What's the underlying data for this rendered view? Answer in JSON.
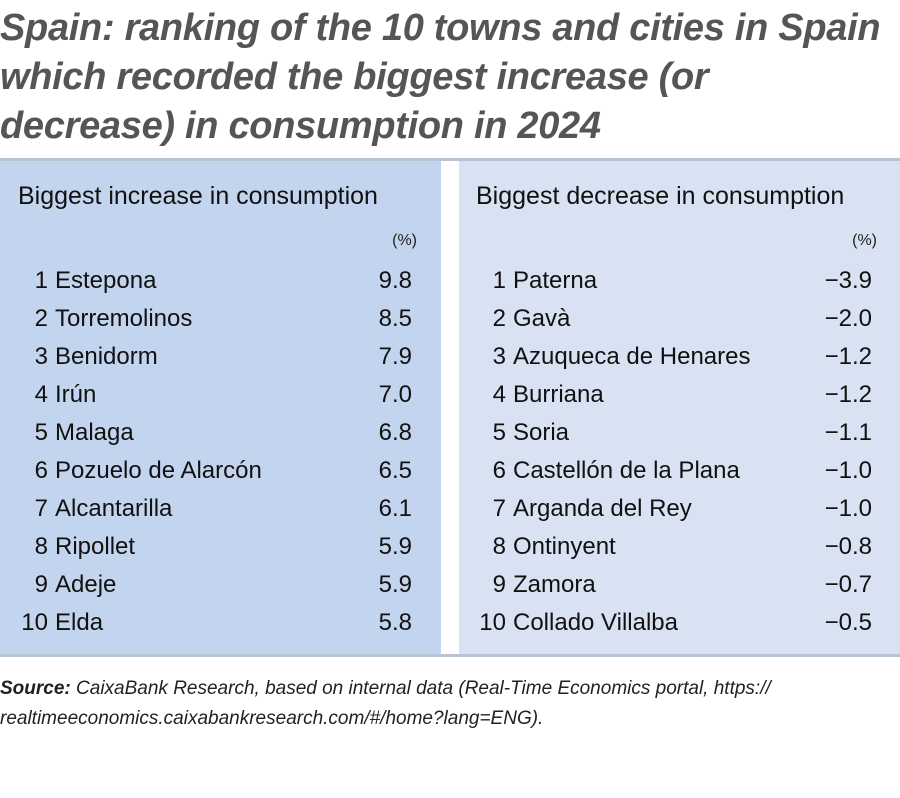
{
  "title": "Spain: ranking of the 10 towns and cities in Spain which recorded the biggest increase (or decrease) in consumption in 2024",
  "colors": {
    "increase_panel": "#c3d4ee",
    "decrease_panel": "#d8e2f2",
    "rule": "#b8c4d2",
    "title_text": "#555555"
  },
  "chart_data": {
    "type": "table",
    "title": "Spain: ranking of the 10 towns and cities in Spain which recorded the biggest increase (or decrease) in consumption in 2024",
    "tables": [
      {
        "heading": "Biggest increase in consumption",
        "unit": "(%)",
        "rows": [
          {
            "rank": "1",
            "town": "Estepona",
            "value": "9.8"
          },
          {
            "rank": "2",
            "town": "Torremolinos",
            "value": "8.5"
          },
          {
            "rank": "3",
            "town": "Benidorm",
            "value": "7.9"
          },
          {
            "rank": "4",
            "town": "Irún",
            "value": "7.0"
          },
          {
            "rank": "5",
            "town": "Malaga",
            "value": "6.8"
          },
          {
            "rank": "6",
            "town": "Pozuelo de Alarcón",
            "value": "6.5"
          },
          {
            "rank": "7",
            "town": "Alcantarilla",
            "value": "6.1"
          },
          {
            "rank": "8",
            "town": "Ripollet",
            "value": "5.9"
          },
          {
            "rank": "9",
            "town": "Adeje",
            "value": "5.9"
          },
          {
            "rank": "10",
            "town": "Elda",
            "value": "5.8"
          }
        ]
      },
      {
        "heading": "Biggest decrease in consumption",
        "unit": "(%)",
        "rows": [
          {
            "rank": "1",
            "town": "Paterna",
            "value": "−3.9"
          },
          {
            "rank": "2",
            "town": "Gavà",
            "value": "−2.0"
          },
          {
            "rank": "3",
            "town": "Azuqueca de Henares",
            "value": "−1.2"
          },
          {
            "rank": "4",
            "town": "Burriana",
            "value": "−1.2"
          },
          {
            "rank": "5",
            "town": "Soria",
            "value": "−1.1"
          },
          {
            "rank": "6",
            "town": "Castellón de la Plana",
            "value": "−1.0"
          },
          {
            "rank": "7",
            "town": "Arganda del Rey",
            "value": "−1.0"
          },
          {
            "rank": "8",
            "town": "Ontinyent",
            "value": "−0.8"
          },
          {
            "rank": "9",
            "town": "Zamora",
            "value": "−0.7"
          },
          {
            "rank": "10",
            "town": "Collado Villalba",
            "value": "−0.5"
          }
        ]
      }
    ]
  },
  "source": {
    "label": "Source:",
    "text": " CaixaBank Research, based on internal data (Real-Time Economics portal, https:// realtimeeconomics.caixabankresearch.com/#/home?lang=ENG)."
  }
}
